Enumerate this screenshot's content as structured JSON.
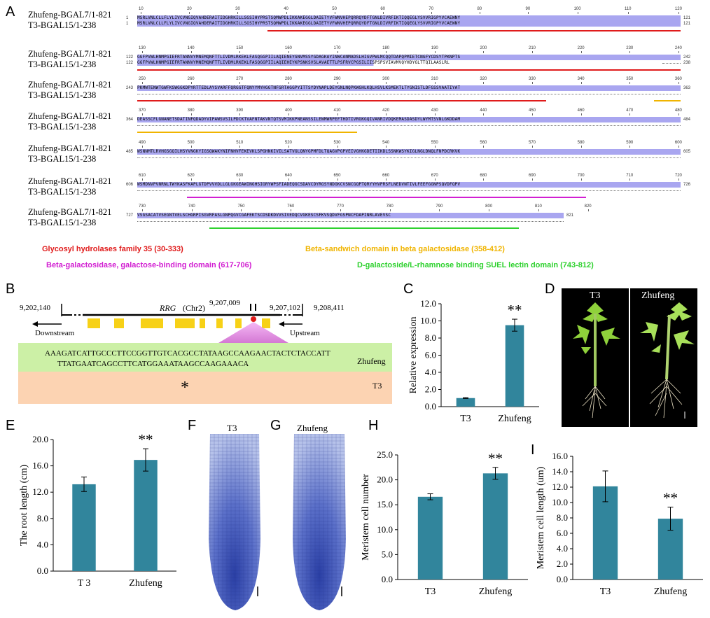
{
  "panels": {
    "A": "A",
    "B": "B",
    "C": "C",
    "D": "D",
    "E": "E",
    "F": "F",
    "G": "G",
    "H": "H",
    "I": "I"
  },
  "alignment": {
    "seq1_name": "Zhufeng-BGAL7/1-821",
    "seq2_name": "T3-BGAL15/1-238",
    "blocks": [
      {
        "ticks": [
          "10",
          "20",
          "30",
          "40",
          "50",
          "60",
          "70",
          "80",
          "90",
          "100",
          "110",
          "120"
        ],
        "s1_start": "1",
        "s1_end": "121",
        "s2_start": "1",
        "s2_end": "121",
        "seq1": "MSRLVNLCLLFLYLIVCVNGIQVAHDERAITIDGHRKILLSGSIHYPRSTSQMWPDLIKKAKEGGLDAIETYVFWNVHEPQRRQYDFTGNLDIVRFIKTIQQEGLYSVVRIGPYVCAEWNY",
        "seq2": "MSRLVNLCLLFLYLIVCVNGIQVAHDERAITIDGHRKILLSGSIHYPRSTSQMWPDLIKKAKEGGLDAIETYVFWNVHEPQRRQYDFTGNLDIVRFIKTIQQEGLYSVVRIGPYVCAEWNY"
      },
      {
        "ticks": [
          "130",
          "140",
          "150",
          "160",
          "170",
          "180",
          "190",
          "200",
          "210",
          "220",
          "230",
          "240"
        ],
        "s1_start": "122",
        "s1_end": "242",
        "s2_start": "122",
        "s2_end": "238",
        "seq1": "GGFPVWLHNMPGIEFRTANNVYMNEMQNFTTLIVDMLRKEKLFASQGGPIILAQIENEYGNVMSSYGDAGKAYINWCANMADSLHIGVPWLMCQQTDAPQPMIETCNGFYCDSYTPKNPTS",
        "seq2": "GGFPVWLHNMPGIEFRTANNVYMNEMQNFTTLIVDMLRKEKLFASQGGPIILAQIEHEYKPSNKSVSLAVAETTLPSFRVCPGSILIISPSPSVIAVMVQYHDYGLTTQILAASLRL"
      },
      {
        "ticks": [
          "250",
          "260",
          "270",
          "280",
          "290",
          "300",
          "310",
          "320",
          "330",
          "340",
          "350",
          "360"
        ],
        "s1_start": "243",
        "s1_end": "363",
        "s2_start": "",
        "s2_end": "",
        "seq1": "PKMWTENWTGWFKSWGGKDPYRTTEDLAYSVARFFQRGGTFQNYYMYHGGTNFGRTAGGPYITTSYDYNAPLDEYGNLNQPKWGHLKQLHSVLKSMEKTLTYGNISTLDFGSSVAATIYAT",
        "seq2": ""
      },
      {
        "ticks": [
          "370",
          "380",
          "390",
          "400",
          "410",
          "420",
          "430",
          "440",
          "450",
          "460",
          "470",
          "480"
        ],
        "s1_start": "364",
        "s1_end": "484",
        "s2_start": "",
        "s2_end": "",
        "seq1": "DEASSCFLGNANETSDATINFQDADYVIPAWSVSILPDCKTVAFNTAKVNTQTSVMIKKPNEANSSILEWMWRPEFTHDTIVRGKGQIVANRIVDQKEMASDASDYLWYMTSVNLGKDDAM",
        "seq2": ""
      },
      {
        "ticks": [
          "490",
          "500",
          "510",
          "520",
          "530",
          "540",
          "550",
          "560",
          "570",
          "580",
          "590",
          "600"
        ],
        "s1_start": "485",
        "s1_end": "605",
        "s2_start": "",
        "s2_end": "",
        "seq1": "WSNNMTLRVHGSGQILHSYVNGKYIGSQWAKYNIFNHVFEKEVKLSPGHNKIVILSATVGLQNYGPMFDLTQAGVPGPVEIVGHKGDETIIKDLSSNKWSYKIGLNGLDNQLFNPDCRKVK",
        "seq2": ""
      },
      {
        "ticks": [
          "610",
          "620",
          "630",
          "640",
          "650",
          "660",
          "670",
          "680",
          "690",
          "700",
          "710",
          "720"
        ],
        "s1_start": "606",
        "s1_end": "726",
        "s2_start": "",
        "s2_end": "",
        "seq1": "WSMDNVPVNRNLTWYKASFKAPLGTDPVVVDLLGLGKGEAWINGHSIGRYWPSFIADEQGCSDAVCDYRGSYNDGKCVSNCGQPTQRYYHVPRSFLNEDVNTIVLFEEFGGNPSQVDFQPV",
        "seq2": ""
      },
      {
        "ticks": [
          "730",
          "740",
          "750",
          "760",
          "770",
          "780",
          "790",
          "800",
          "810",
          "820"
        ],
        "s1_start": "727",
        "s1_end": "821",
        "s2_start": "",
        "s2_end": "",
        "seq1": "VSGSACATVSEGNTVELSCHGRPISGVRFASLGNPQGVCGAFEKTSCDSDKDVVSIVEDQCVGKESCSFKVSQDVFGSPNCFDAPINRLAVEVSC",
        "seq2": ""
      }
    ],
    "legend": [
      {
        "text": "Glycosyl hydrolases family 35 (30-333)",
        "color": "#e01b1b"
      },
      {
        "text": "Beta-sandwich domain in beta galactosidase (358-412)",
        "color": "#f0b400"
      },
      {
        "text": "Beta-galactosidase, galactose-binding domain (617-706)",
        "color": "#d21fd2"
      },
      {
        "text": "D-galactoside/L-rhamnose binding SUEL lectin domain (743-812)",
        "color": "#2ed12e"
      }
    ]
  },
  "gene": {
    "pos_left": "9,202,140",
    "pos_mid": "9,207,009",
    "pos_right_mid": "9,207,102",
    "pos_right": "9,208,411",
    "gene_name": "RRG",
    "chrom": "(Chr2)",
    "downstream": "Downstream",
    "upstream": "Upstream",
    "seq_line1": "AAAGATCATTGCCCTTCCGGTTGTCACGCCTATAAGCCAAGAACTACTCTACCATT",
    "seq_line2": "TTATGAATCAGCCTTCATGGAAATAAGCCAAGAAACA",
    "label_zhufeng": "Zhufeng",
    "label_t3": "T3",
    "mark": "*"
  },
  "plants": {
    "left_label": "T3",
    "right_label": "Zhufeng"
  },
  "sections": {
    "F_label": "T3",
    "G_label": "Zhufeng"
  },
  "chart_data": [
    {
      "id": "C",
      "type": "bar",
      "title": "",
      "categories": [
        "T3",
        "Zhufeng"
      ],
      "values": [
        1.0,
        9.5
      ],
      "errors": [
        0.05,
        0.7
      ],
      "ylabel": "Relative expression",
      "xlabel": "",
      "ylim": [
        0,
        12
      ],
      "yticks": [
        "0.0",
        "2.0",
        "4.0",
        "6.0",
        "8.0",
        "10.0",
        "12.0"
      ],
      "annotation": "**",
      "color": "#31859c"
    },
    {
      "id": "E",
      "type": "bar",
      "title": "",
      "categories": [
        "T 3",
        "Zhufeng"
      ],
      "values": [
        13.2,
        16.9
      ],
      "errors": [
        1.1,
        1.7
      ],
      "ylabel": "The root length (cm)",
      "xlabel": "",
      "ylim": [
        0,
        20
      ],
      "yticks": [
        "0.0",
        "4.0",
        "8.0",
        "12.0",
        "16.0",
        "20.0"
      ],
      "annotation": "**",
      "color": "#31859c"
    },
    {
      "id": "H",
      "type": "bar",
      "title": "",
      "categories": [
        "T3",
        "Zhufeng"
      ],
      "values": [
        16.6,
        21.3
      ],
      "errors": [
        0.6,
        1.2
      ],
      "ylabel": "Meristem cell number",
      "xlabel": "",
      "ylim": [
        0,
        25
      ],
      "yticks": [
        "0.0",
        "5.0",
        "10.0",
        "15.0",
        "20.0",
        "25.0"
      ],
      "annotation": "**",
      "color": "#31859c"
    },
    {
      "id": "I",
      "type": "bar",
      "title": "",
      "categories": [
        "T3",
        "Zhufeng"
      ],
      "values": [
        12.1,
        7.9
      ],
      "errors": [
        2.0,
        1.5
      ],
      "ylabel": "Meristem cell length (um)",
      "xlabel": "",
      "ylim": [
        0,
        16
      ],
      "yticks": [
        "0.0",
        "2.0",
        "4.0",
        "6.0",
        "8.0",
        "10.0",
        "12.0",
        "14.0",
        "16.0"
      ],
      "annotation": "**",
      "color": "#31859c"
    }
  ]
}
